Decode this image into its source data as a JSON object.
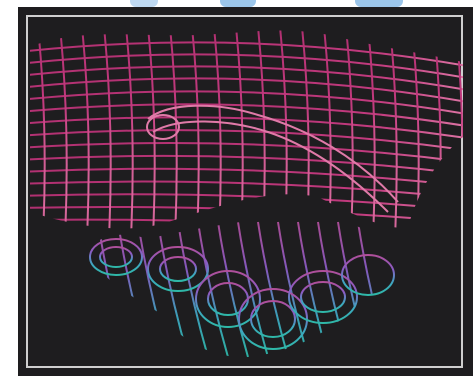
{
  "image": {
    "subject": "",
    "colors": {
      "background": "#1e1d1f",
      "border": "#cfcfcf",
      "upper_hand": "#c23a7e",
      "upper_hand_light": "#e07aa8",
      "lower_hand_violet": "#8a5cc4",
      "lower_hand_teal": "#2fb8a8",
      "top_accent": "#9cc6ea"
    }
  }
}
